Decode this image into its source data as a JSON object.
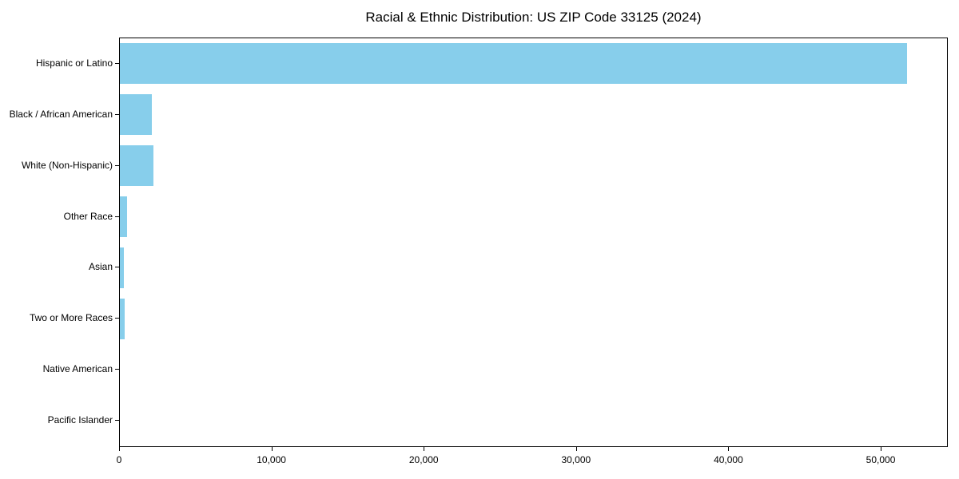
{
  "page": {
    "background_color": "#ffffff"
  },
  "chart_data": {
    "type": "bar",
    "orientation": "horizontal",
    "title": "Racial & Ethnic Distribution: US ZIP Code 33125 (2024)",
    "categories": [
      "Hispanic or Latino",
      "Black / African American",
      "White (Non-Hispanic)",
      "Other Race",
      "Asian",
      "Two or More Races",
      "Native American",
      "Pacific Islander"
    ],
    "values": [
      51700,
      2100,
      2200,
      450,
      260,
      300,
      0,
      0
    ],
    "xlabel": "",
    "ylabel": "",
    "xlim": [
      0,
      54300
    ],
    "xticks": {
      "values": [
        0,
        10000,
        20000,
        30000,
        40000,
        50000
      ],
      "labels": [
        "0",
        "10,000",
        "20,000",
        "30,000",
        "40,000",
        "50,000"
      ]
    },
    "grid": false,
    "legend": null,
    "colors": {
      "bar": "#87CEEB",
      "text": "#000000",
      "spine": "#000000",
      "background": "#ffffff"
    }
  }
}
